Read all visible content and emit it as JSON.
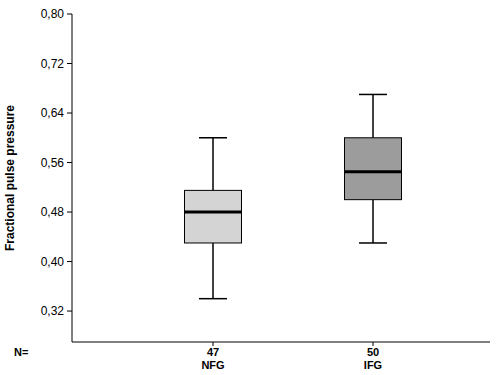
{
  "chart_data": {
    "type": "box",
    "y_label": "Fractional pulse pressure",
    "categories": [
      "NFG",
      "IFG"
    ],
    "n_label": "N=",
    "n": [
      47,
      50
    ],
    "low": [
      0.34,
      0.43
    ],
    "q1": [
      0.43,
      0.5
    ],
    "median": [
      0.48,
      0.545
    ],
    "q3": [
      0.515,
      0.6
    ],
    "high": [
      0.6,
      0.67
    ],
    "colors": [
      "#d4d4d4",
      "#9c9c9c"
    ],
    "ylim": [
      0.27,
      0.8
    ],
    "yticks": [
      {
        "value": 0.32,
        "label": "0,32"
      },
      {
        "value": 0.4,
        "label": "0,40"
      },
      {
        "value": 0.48,
        "label": "0,48"
      },
      {
        "value": 0.56,
        "label": "0,56"
      },
      {
        "value": 0.64,
        "label": "0,64"
      },
      {
        "value": 0.72,
        "label": "0,72"
      },
      {
        "value": 0.8,
        "label": "0,80"
      }
    ],
    "grid": false
  }
}
